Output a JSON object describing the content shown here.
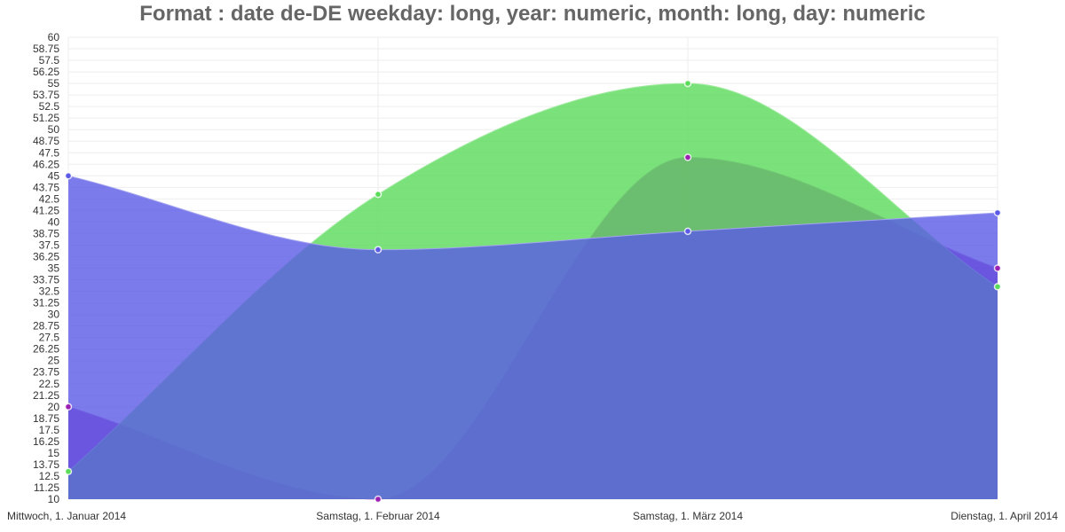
{
  "chart_data": {
    "type": "area",
    "title": "Format : date de-DE weekday: long, year: numeric, month: long, day: numeric",
    "categories": [
      "Mittwoch, 1. Januar 2014",
      "Samstag, 1. Februar 2014",
      "Samstag, 1. März 2014",
      "Dienstag, 1. April 2014"
    ],
    "ylim": [
      10,
      60
    ],
    "yticks": [
      "10",
      "11.25",
      "12.5",
      "13.75",
      "15",
      "16.25",
      "17.5",
      "18.75",
      "20",
      "21.25",
      "22.5",
      "23.75",
      "25",
      "26.25",
      "27.5",
      "28.75",
      "30",
      "31.25",
      "32.5",
      "33.75",
      "35",
      "36.25",
      "37.5",
      "38.75",
      "40",
      "41.25",
      "42.5",
      "43.75",
      "45",
      "46.25",
      "47.5",
      "48.75",
      "50",
      "51.25",
      "52.5",
      "53.75",
      "55",
      "56.25",
      "57.5",
      "58.75",
      "60"
    ],
    "grid": true,
    "series": [
      {
        "values": [
          20,
          10,
          47,
          35
        ],
        "color": "#9b1fb0"
      },
      {
        "values": [
          13,
          43,
          55,
          33
        ],
        "color": "#5adb5a"
      },
      {
        "values": [
          45,
          37,
          39,
          41
        ],
        "color": "#5a5ae6"
      }
    ]
  }
}
